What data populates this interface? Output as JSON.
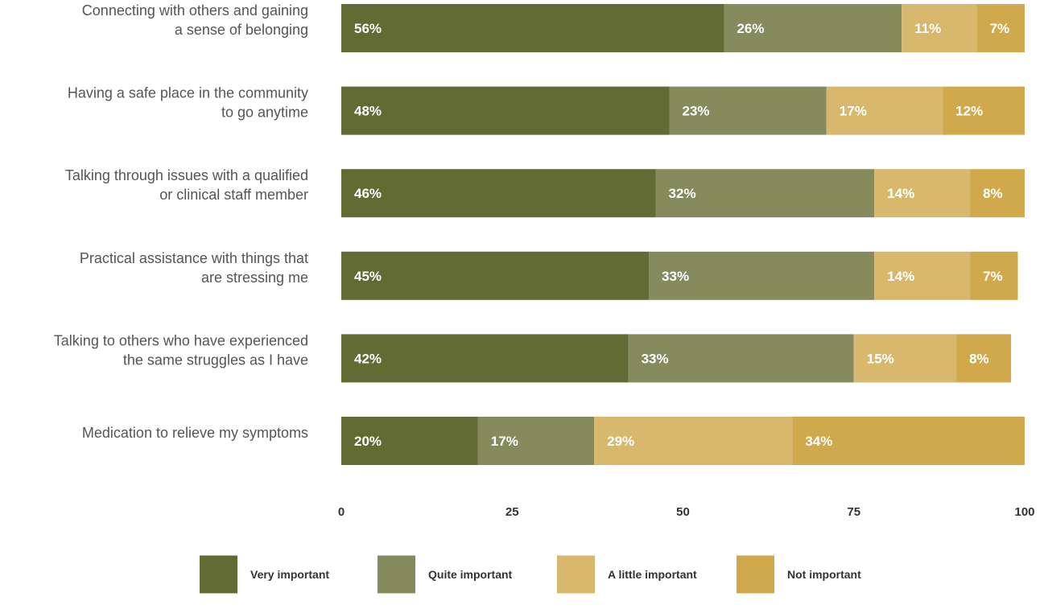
{
  "chart_data": {
    "type": "bar",
    "orientation": "horizontal",
    "stacked": true,
    "title": "",
    "xlabel": "",
    "ylabel": "",
    "xlim": [
      0,
      100
    ],
    "x_ticks": [
      0,
      25,
      50,
      75,
      100
    ],
    "grid": false,
    "legend_position": "bottom",
    "categories": [
      [
        "Connecting with others and gaining",
        "a sense of belonging"
      ],
      [
        "Having a safe place in the community",
        "to go anytime"
      ],
      [
        "Talking through issues with a qualified",
        "or clinical staff member"
      ],
      [
        "Practical assistance with things that",
        "are stressing me"
      ],
      [
        "Talking to others who have experienced",
        "the same struggles as I have"
      ],
      [
        "Medication to relieve my symptoms"
      ]
    ],
    "series": [
      {
        "name": "Very important",
        "color": "#616b33",
        "values": [
          56,
          48,
          46,
          45,
          42,
          20
        ]
      },
      {
        "name": "Quite important",
        "color": "#868b5e",
        "values": [
          26,
          23,
          32,
          33,
          33,
          17
        ]
      },
      {
        "name": "A little important",
        "color": "#d8b86c",
        "values": [
          11,
          17,
          14,
          14,
          15,
          29
        ]
      },
      {
        "name": "Not important",
        "color": "#cfa94c",
        "values": [
          7,
          12,
          8,
          7,
          8,
          34
        ]
      }
    ],
    "label_suffix": "%"
  }
}
